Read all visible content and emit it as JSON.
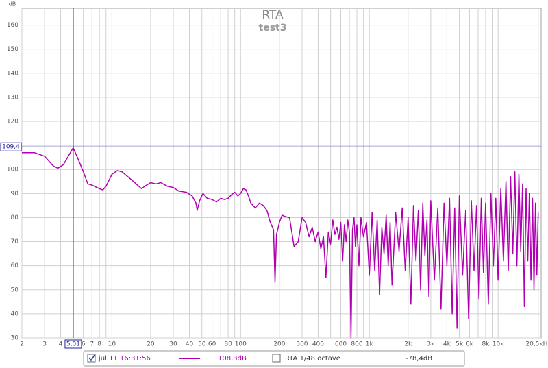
{
  "chart_data": {
    "type": "line",
    "title": "RTA",
    "subtitle": "test3",
    "ylabel": "dB",
    "xscale": "log",
    "grid": true,
    "xlim": [
      2,
      21600
    ],
    "ylim": [
      30,
      167
    ],
    "yticks": [
      30,
      40,
      50,
      60,
      70,
      80,
      90,
      100,
      110,
      120,
      130,
      140,
      150,
      160
    ],
    "xticks": [
      2,
      3,
      4,
      6,
      7,
      8,
      10,
      20,
      30,
      40,
      50,
      60,
      80,
      100,
      200,
      300,
      400,
      600,
      800,
      {
        "value": 1000,
        "label": "1k"
      },
      {
        "value": 2000,
        "label": "2k"
      },
      {
        "value": 3000,
        "label": "3k"
      },
      {
        "value": 4000,
        "label": "4k"
      },
      {
        "value": 5000,
        "label": "5k"
      },
      {
        "value": 6000,
        "label": "6k"
      },
      {
        "value": 8000,
        "label": "8k"
      },
      {
        "value": 10000,
        "label": "10k"
      },
      {
        "value": 20500,
        "label": "20,5kHz"
      }
    ],
    "xminor": [
      5,
      9,
      70,
      90,
      500,
      700,
      900,
      7000,
      9000
    ],
    "cursor": {
      "x": 5.01,
      "x_label": "5,01",
      "y": 109.4,
      "y_label": "109,4",
      "color": "#2020a0"
    },
    "x": [
      2,
      2.5,
      3,
      3.5,
      3.8,
      4.2,
      5,
      5.5,
      6,
      6.5,
      7,
      8,
      8.5,
      9,
      10,
      11,
      12,
      14,
      17,
      18,
      20,
      22,
      24,
      27,
      30,
      33,
      38,
      42,
      45,
      46,
      48,
      51,
      55,
      60,
      65,
      70,
      75,
      80,
      85,
      90,
      95,
      100,
      105,
      110,
      115,
      120,
      130,
      140,
      150,
      160,
      170,
      180,
      185,
      190,
      200,
      210,
      220,
      240,
      260,
      280,
      300,
      320,
      340,
      360,
      380,
      400,
      420,
      440,
      460,
      480,
      500,
      520,
      540,
      560,
      580,
      600,
      620,
      640,
      660,
      680,
      700,
      720,
      740,
      760,
      780,
      800,
      830,
      860,
      900,
      950,
      1000,
      1050,
      1100,
      1150,
      1200,
      1250,
      1300,
      1350,
      1400,
      1450,
      1500,
      1600,
      1700,
      1800,
      1900,
      2000,
      2100,
      2200,
      2300,
      2400,
      2500,
      2600,
      2700,
      2800,
      2900,
      3000,
      3200,
      3400,
      3600,
      3800,
      4000,
      4200,
      4400,
      4600,
      4800,
      5000,
      5300,
      5600,
      5900,
      6200,
      6500,
      6800,
      7100,
      7400,
      7700,
      8000,
      8400,
      8800,
      9200,
      9600,
      10000,
      10500,
      11000,
      11500,
      12000,
      12500,
      13000,
      13500,
      14000,
      14500,
      15000,
      15500,
      16000,
      16500,
      17000,
      17500,
      18000,
      18500,
      19000,
      19500,
      20000,
      20500
    ],
    "series": [
      {
        "name": "jul 11 16:31:56",
        "color": "#b000b0",
        "readout": "108,3dB",
        "checked": true,
        "values": [
          107,
          107,
          105.5,
          101.5,
          100.5,
          102,
          109,
          104,
          99,
          94,
          93.5,
          92,
          91.5,
          93,
          98,
          99.5,
          99,
          96,
          92,
          93,
          94.5,
          94,
          94.5,
          93,
          92.5,
          91,
          90.5,
          89,
          86,
          83,
          87,
          90,
          88,
          87.5,
          86.5,
          88,
          87.5,
          88,
          89.5,
          90.5,
          89,
          90,
          92,
          91.5,
          89,
          86,
          84,
          86,
          85,
          83,
          78,
          75,
          53,
          73,
          78,
          81,
          80.5,
          80,
          68,
          70,
          80,
          78,
          72,
          76,
          70,
          74,
          67,
          72,
          55,
          74,
          69,
          79,
          73,
          76,
          71,
          78,
          62,
          77,
          70,
          79,
          74,
          30,
          75,
          80,
          68,
          77,
          60,
          80,
          72,
          78,
          56,
          82,
          58,
          79,
          48,
          76,
          65,
          81,
          60,
          78,
          52,
          82,
          66,
          84,
          58,
          80,
          44,
          85,
          62,
          83,
          50,
          86,
          64,
          79,
          47,
          87,
          54,
          84,
          42,
          86,
          60,
          88,
          40,
          84,
          34,
          89,
          56,
          83,
          38,
          87,
          58,
          85,
          46,
          88,
          57,
          86,
          44,
          90,
          60,
          88,
          54,
          92,
          62,
          95,
          58,
          97,
          65,
          99,
          60,
          98,
          66,
          94,
          43,
          92,
          62,
          90,
          54,
          88,
          50,
          86,
          56,
          82
        ]
      }
    ],
    "overlay": {
      "name": "RTA 1/48 octave",
      "readout": "-78,4dB",
      "checked": false
    }
  }
}
